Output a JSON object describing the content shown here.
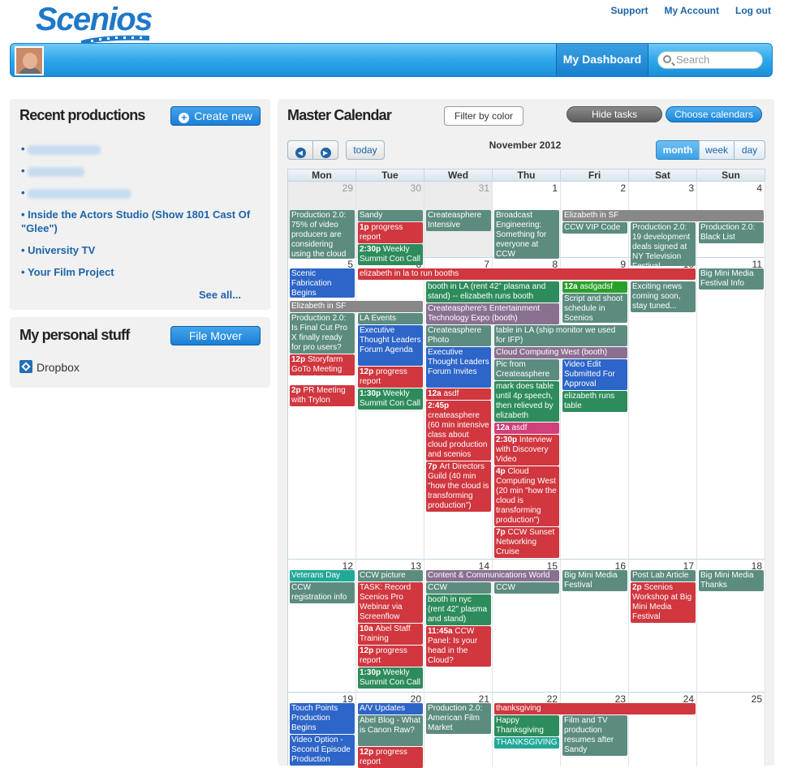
{
  "header": {
    "logo": "Scenios",
    "links": [
      "Support",
      "My Account",
      "Log out"
    ],
    "dashboard": "My Dashboard",
    "search_placeholder": "Search"
  },
  "recent": {
    "title": "Recent productions",
    "create": "Create new",
    "items": [
      "Inside the Actors Studio (Show 1801 Cast Of \"Glee\")",
      "University TV",
      "Your Film Project"
    ],
    "see_all": "See all..."
  },
  "personal": {
    "title": "My personal stuff",
    "file_mover": "File Mover",
    "dropbox": "Dropbox"
  },
  "calendar": {
    "title": "Master Calendar",
    "filter": "Filter by color",
    "hide_tasks": "Hide tasks",
    "choose": "Choose calendars",
    "today": "today",
    "month_title": "November 2012",
    "views": [
      "month",
      "week",
      "day"
    ],
    "days": [
      "Mon",
      "Tue",
      "Wed",
      "Thu",
      "Fri",
      "Sat",
      "Sun"
    ],
    "weeks": [
      [
        "29",
        "30",
        "31",
        "1",
        "2",
        "3",
        "4"
      ],
      [
        "5",
        "6",
        "7",
        "8",
        "9",
        "10",
        "11"
      ],
      [
        "12",
        "13",
        "14",
        "15",
        "16",
        "17",
        "18"
      ],
      [
        "19",
        "20",
        "21",
        "22",
        "23",
        "24",
        "25"
      ]
    ],
    "colors": {
      "teal": "#5c8c80",
      "red": "#d0373f",
      "green": "#2e8c5c",
      "blue": "#2d65c8",
      "gray": "#888888",
      "mauve": "#8a7090",
      "pink": "#d0407a",
      "bgreen": "#2aa02a",
      "cyan": "#22a898"
    },
    "events": [
      {
        "w": 0,
        "c": 0,
        "s": 1,
        "t": 36,
        "h": 60,
        "color": "teal",
        "text": "Production 2.0: 75% of video producers are considering using the cloud"
      },
      {
        "w": 0,
        "c": 1,
        "s": 1,
        "t": 36,
        "h": 14,
        "color": "teal",
        "text": "Sandy"
      },
      {
        "w": 0,
        "c": 1,
        "s": 1,
        "t": 51,
        "h": 26,
        "color": "red",
        "time": "1p",
        "text": "progress report"
      },
      {
        "w": 0,
        "c": 1,
        "s": 1,
        "t": 78,
        "h": 26,
        "color": "green",
        "time": "2:30p",
        "text": "Weekly Summit Con Call"
      },
      {
        "w": 0,
        "c": 2,
        "s": 1,
        "t": 36,
        "h": 26,
        "color": "teal",
        "text": "Createasphere Intensive"
      },
      {
        "w": 0,
        "c": 3,
        "s": 1,
        "t": 36,
        "h": 60,
        "color": "teal",
        "text": "Broadcast Engineering: Something for everyone at CCW"
      },
      {
        "w": 0,
        "c": 4,
        "s": 3,
        "t": 36,
        "h": 14,
        "color": "gray",
        "text": "Elizabeth in SF"
      },
      {
        "w": 0,
        "c": 4,
        "s": 1,
        "t": 51,
        "h": 14,
        "color": "teal",
        "text": "CCW VIP Code"
      },
      {
        "w": 0,
        "c": 5,
        "s": 1,
        "t": 51,
        "h": 54,
        "color": "teal",
        "text": "Production 2.0: 19 development deals signed at NY Television Festival"
      },
      {
        "w": 0,
        "c": 6,
        "s": 1,
        "t": 51,
        "h": 26,
        "color": "teal",
        "text": "Production 2.0: Black List"
      },
      {
        "w": 1,
        "c": 0,
        "s": 1,
        "t": 14,
        "h": 36,
        "color": "blue",
        "text": "Scenic Fabrication Begins"
      },
      {
        "w": 1,
        "c": 1,
        "s": 5,
        "t": 14,
        "h": 14,
        "color": "red",
        "text": "elizabeth in la to run booths"
      },
      {
        "w": 1,
        "c": 6,
        "s": 1,
        "t": 14,
        "h": 26,
        "color": "teal",
        "text": "Big Mini Media Festival Info"
      },
      {
        "w": 1,
        "c": 2,
        "s": 2,
        "t": 30,
        "h": 26,
        "color": "green",
        "text": "booth in LA (rent 42\" plasma and stand) -- elizabeth runs booth"
      },
      {
        "w": 1,
        "c": 4,
        "s": 1,
        "t": 30,
        "h": 14,
        "color": "bgreen",
        "time": "12a",
        "text": "asdgadsf"
      },
      {
        "w": 1,
        "c": 5,
        "s": 1,
        "t": 30,
        "h": 38,
        "color": "teal",
        "text": "Exciting news coming soon, stay tuned..."
      },
      {
        "w": 1,
        "c": 0,
        "s": 2,
        "t": 54,
        "h": 14,
        "color": "gray",
        "text": "Elizabeth in SF"
      },
      {
        "w": 1,
        "c": 4,
        "s": 1,
        "t": 45,
        "h": 36,
        "color": "teal",
        "text": "Script and shoot schedule in Scenios"
      },
      {
        "w": 1,
        "c": 2,
        "s": 2,
        "t": 57,
        "h": 26,
        "color": "mauve",
        "text": "Createasphere's Entertainment Technology Expo (booth)"
      },
      {
        "w": 1,
        "c": 0,
        "s": 1,
        "t": 69,
        "h": 50,
        "color": "teal",
        "text": "Production 2.0: Is Final Cut Pro X finally ready for pro users?"
      },
      {
        "w": 1,
        "c": 1,
        "s": 1,
        "t": 69,
        "h": 14,
        "color": "teal",
        "text": "LA Events"
      },
      {
        "w": 1,
        "c": 1,
        "s": 1,
        "t": 84,
        "h": 50,
        "color": "blue",
        "text": "Executive Thought Leaders Forum Agenda"
      },
      {
        "w": 1,
        "c": 2,
        "s": 1,
        "t": 84,
        "h": 26,
        "color": "teal",
        "text": "Createasphere Photo"
      },
      {
        "w": 1,
        "c": 3,
        "s": 2,
        "t": 84,
        "h": 26,
        "color": "teal",
        "text": "table in LA (ship monitor we used for IFP)"
      },
      {
        "w": 1,
        "c": 2,
        "s": 1,
        "t": 111,
        "h": 50,
        "color": "blue",
        "text": "Executive Thought Leaders Forum Invites"
      },
      {
        "w": 1,
        "c": 3,
        "s": 2,
        "t": 111,
        "h": 14,
        "color": "mauve",
        "text": "Cloud Computing West (booth)"
      },
      {
        "w": 1,
        "c": 3,
        "s": 1,
        "t": 126,
        "h": 26,
        "color": "teal",
        "text": "Pic from Createasphere"
      },
      {
        "w": 1,
        "c": 4,
        "s": 1,
        "t": 126,
        "h": 38,
        "color": "blue",
        "text": "Video Edit Submitted For Approval"
      },
      {
        "w": 1,
        "c": 0,
        "s": 1,
        "t": 120,
        "h": 26,
        "color": "red",
        "time": "12p",
        "text": "Storyfarm GoTo Meeting with Chris"
      },
      {
        "w": 1,
        "c": 1,
        "s": 1,
        "t": 135,
        "h": 26,
        "color": "red",
        "time": "12p",
        "text": "progress report"
      },
      {
        "w": 1,
        "c": 3,
        "s": 1,
        "t": 153,
        "h": 50,
        "color": "green",
        "text": "mark does table until 4p speech, then relieved by elizabeth"
      },
      {
        "w": 1,
        "c": 0,
        "s": 1,
        "t": 158,
        "h": 26,
        "color": "red",
        "time": "2p",
        "text": "PR Meeting with Trylon"
      },
      {
        "w": 1,
        "c": 1,
        "s": 1,
        "t": 162,
        "h": 26,
        "color": "green",
        "time": "1:30p",
        "text": "Weekly Summit Con Call"
      },
      {
        "w": 1,
        "c": 2,
        "s": 1,
        "t": 162,
        "h": 14,
        "color": "red",
        "time": "12a",
        "text": "asdf"
      },
      {
        "w": 1,
        "c": 4,
        "s": 1,
        "t": 165,
        "h": 26,
        "color": "green",
        "text": "elizabeth runs table"
      },
      {
        "w": 1,
        "c": 2,
        "s": 1,
        "t": 177,
        "h": 74,
        "color": "red",
        "time": "2:45p",
        "text": "createasphere (60 min intensive class about cloud production and scenios demo)"
      },
      {
        "w": 1,
        "c": 3,
        "s": 1,
        "t": 204,
        "h": 14,
        "color": "pink",
        "time": "12a",
        "text": "asdf"
      },
      {
        "w": 1,
        "c": 3,
        "s": 1,
        "t": 219,
        "h": 38,
        "color": "red",
        "time": "2:30p",
        "text": "Interview with Discovery Video"
      },
      {
        "w": 1,
        "c": 2,
        "s": 1,
        "t": 252,
        "h": 62,
        "color": "red",
        "time": "7p",
        "text": "Art Directors Guild (40 min \"how the cloud is transforming production\")"
      },
      {
        "w": 1,
        "c": 3,
        "s": 1,
        "t": 258,
        "h": 74,
        "color": "red",
        "time": "4p",
        "text": "Cloud Computing West (20 min \"how the cloud is transforming production\")"
      },
      {
        "w": 1,
        "c": 3,
        "s": 1,
        "t": 333,
        "h": 38,
        "color": "red",
        "time": "7p",
        "text": "CCW Sunset Networking Cruise"
      },
      {
        "w": 2,
        "c": 0,
        "s": 1,
        "t": 14,
        "h": 14,
        "color": "cyan",
        "text": "Veterans Day"
      },
      {
        "w": 2,
        "c": 1,
        "s": 1,
        "t": 14,
        "h": 14,
        "color": "teal",
        "text": "CCW picture"
      },
      {
        "w": 2,
        "c": 2,
        "s": 2,
        "t": 14,
        "h": 14,
        "color": "mauve",
        "text": "Content & Communications World"
      },
      {
        "w": 2,
        "c": 4,
        "s": 1,
        "t": 14,
        "h": 26,
        "color": "teal",
        "text": "Big Mini Media Festival"
      },
      {
        "w": 2,
        "c": 5,
        "s": 1,
        "t": 14,
        "h": 14,
        "color": "teal",
        "text": "Post Lab Article"
      },
      {
        "w": 2,
        "c": 6,
        "s": 1,
        "t": 14,
        "h": 26,
        "color": "teal",
        "text": "Big Mini Media Thanks"
      },
      {
        "w": 2,
        "c": 0,
        "s": 1,
        "t": 29,
        "h": 26,
        "color": "teal",
        "text": "CCW registration info"
      },
      {
        "w": 2,
        "c": 1,
        "s": 1,
        "t": 29,
        "h": 50,
        "color": "red",
        "text": "TASK: Record Scenios Pro Webinar via Screenflow"
      },
      {
        "w": 2,
        "c": 2,
        "s": 1,
        "t": 29,
        "h": 14,
        "color": "teal",
        "text": "CCW"
      },
      {
        "w": 2,
        "c": 3,
        "s": 1,
        "t": 29,
        "h": 14,
        "color": "teal",
        "text": "CCW"
      },
      {
        "w": 2,
        "c": 5,
        "s": 1,
        "t": 29,
        "h": 50,
        "color": "red",
        "time": "2p",
        "text": "Scenios Workshop at Big Mini Media Festival"
      },
      {
        "w": 2,
        "c": 2,
        "s": 1,
        "t": 44,
        "h": 38,
        "color": "green",
        "text": "booth in nyc (rent 42\" plasma and stand)"
      },
      {
        "w": 2,
        "c": 1,
        "s": 1,
        "t": 80,
        "h": 26,
        "color": "red",
        "time": "10a",
        "text": "Abel Staff Training"
      },
      {
        "w": 2,
        "c": 2,
        "s": 1,
        "t": 83,
        "h": 50,
        "color": "red",
        "time": "11:45a",
        "text": "CCW Panel: Is your head in the Cloud?"
      },
      {
        "w": 2,
        "c": 1,
        "s": 1,
        "t": 107,
        "h": 26,
        "color": "red",
        "time": "12p",
        "text": "progress report"
      },
      {
        "w": 2,
        "c": 1,
        "s": 1,
        "t": 134,
        "h": 26,
        "color": "green",
        "time": "1:30p",
        "text": "Weekly Summit Con Call"
      },
      {
        "w": 3,
        "c": 0,
        "s": 1,
        "t": 14,
        "h": 38,
        "color": "blue",
        "text": "Touch Points Production Begins"
      },
      {
        "w": 3,
        "c": 1,
        "s": 1,
        "t": 14,
        "h": 14,
        "color": "blue",
        "text": "A/V Updates"
      },
      {
        "w": 3,
        "c": 2,
        "s": 1,
        "t": 14,
        "h": 38,
        "color": "teal",
        "text": "Production 2.0: American Film Market"
      },
      {
        "w": 3,
        "c": 3,
        "s": 3,
        "t": 14,
        "h": 14,
        "color": "red",
        "text": "thanksgiving"
      },
      {
        "w": 3,
        "c": 1,
        "s": 1,
        "t": 29,
        "h": 38,
        "color": "teal",
        "text": "Abel Blog - What is Canon Raw?"
      },
      {
        "w": 3,
        "c": 3,
        "s": 1,
        "t": 29,
        "h": 26,
        "color": "green",
        "text": "Happy Thanksgiving"
      },
      {
        "w": 3,
        "c": 4,
        "s": 1,
        "t": 29,
        "h": 50,
        "color": "teal",
        "text": "Film and TV production resumes after Sandy"
      },
      {
        "w": 3,
        "c": 0,
        "s": 1,
        "t": 53,
        "h": 38,
        "color": "blue",
        "text": "Video Option - Second Episode Production"
      },
      {
        "w": 3,
        "c": 3,
        "s": 1,
        "t": 56,
        "h": 14,
        "color": "cyan",
        "text": "THANKSGIVING"
      },
      {
        "w": 3,
        "c": 1,
        "s": 1,
        "t": 68,
        "h": 26,
        "color": "red",
        "time": "12p",
        "text": "progress report"
      }
    ]
  }
}
